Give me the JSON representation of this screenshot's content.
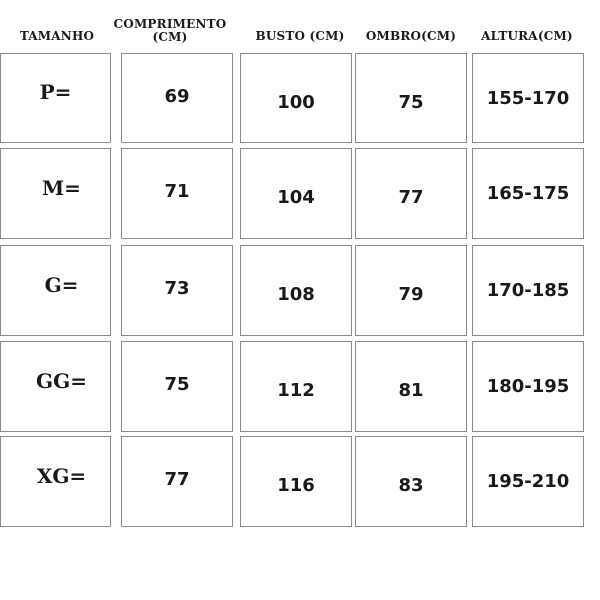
{
  "headers": [
    "TAMANHO",
    "COMPRIMENTO\n(CM)",
    "BUSTO (CM)",
    "OMBRO(CM)",
    "ALTURA(CM)"
  ],
  "rows": [
    {
      "size": "P=",
      "comprimento": "69",
      "busto": "100",
      "ombro": "75",
      "altura": "155-170"
    },
    {
      "size": "M=",
      "comprimento": "71",
      "busto": "104",
      "ombro": "77",
      "altura": "165-175"
    },
    {
      "size": "G=",
      "comprimento": "73",
      "busto": "108",
      "ombro": "79",
      "altura": "170-185"
    },
    {
      "size": "GG=",
      "comprimento": "75",
      "busto": "112",
      "ombro": "81",
      "altura": "180-195"
    },
    {
      "size": "XG=",
      "comprimento": "77",
      "busto": "116",
      "ombro": "83",
      "altura": "195-210"
    }
  ]
}
